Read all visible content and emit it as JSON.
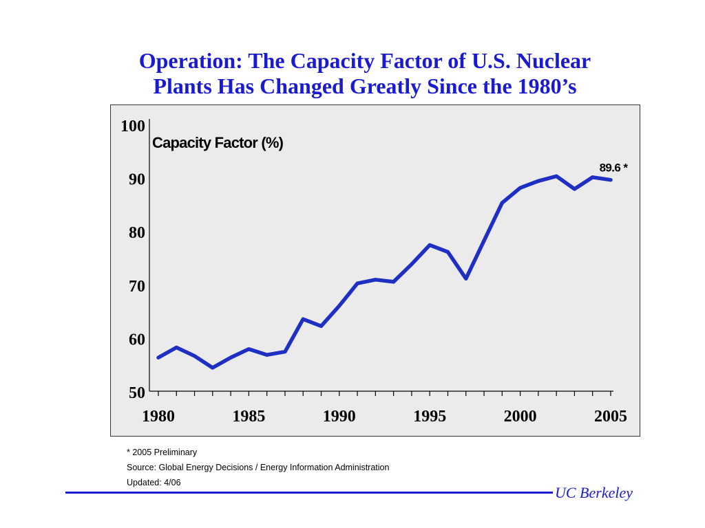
{
  "title": {
    "line1": "Operation:  The Capacity Factor of U.S. Nuclear",
    "line2": "Plants Has Changed Greatly Since the 1980’s"
  },
  "chart_data": {
    "type": "line",
    "ylabel": "Capacity Factor (%)",
    "ylim": [
      50,
      100
    ],
    "xlim": [
      1980,
      2005
    ],
    "y_ticks": [
      50,
      60,
      70,
      80,
      90,
      100
    ],
    "x_ticks": [
      1980,
      1985,
      1990,
      1995,
      2000,
      2005
    ],
    "grid": false,
    "series": [
      {
        "color": "#1f2fc4",
        "x": [
          1980,
          1981,
          1982,
          1983,
          1984,
          1985,
          1986,
          1987,
          1988,
          1989,
          1990,
          1991,
          1992,
          1993,
          1994,
          1995,
          1996,
          1997,
          1998,
          1999,
          2000,
          2001,
          2002,
          2003,
          2004,
          2005
        ],
        "values": [
          56.3,
          58.2,
          56.6,
          54.4,
          56.3,
          57.9,
          56.8,
          57.4,
          63.5,
          62.2,
          66.0,
          70.2,
          70.9,
          70.5,
          73.8,
          77.4,
          76.1,
          71.1,
          78.2,
          85.3,
          88.1,
          89.4,
          90.3,
          87.9,
          90.1,
          89.6
        ]
      }
    ],
    "annotation": "89.6 *"
  },
  "notes": {
    "preliminary": "* 2005 Preliminary",
    "source": "Source: Global Energy Decisions / Energy Information Administration",
    "updated": "Updated: 4/06"
  },
  "footer": {
    "brand": "UC Berkeley",
    "color": "#1a1ad0"
  }
}
